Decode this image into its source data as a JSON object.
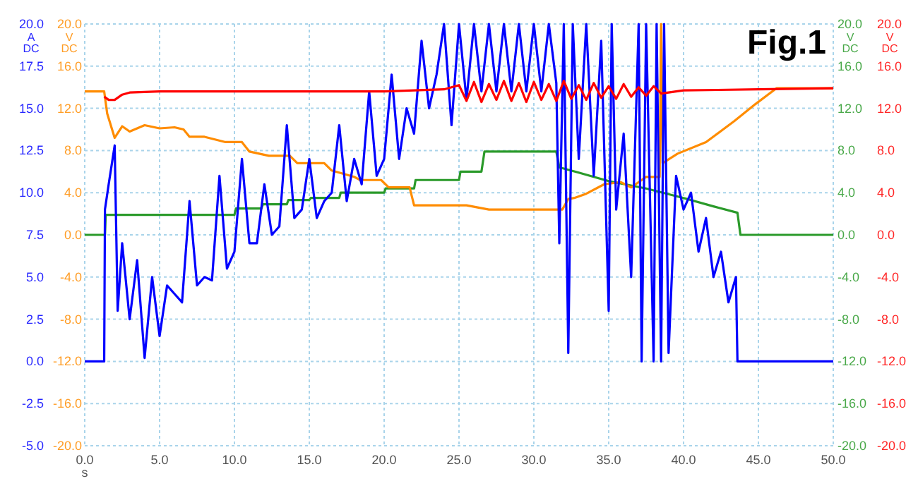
{
  "chart_data": {
    "type": "line",
    "title": "Fig.1",
    "xlabel": "s",
    "ylabel": "A DC",
    "y2label": "V DC",
    "y3label": "V DC",
    "grid": true,
    "marker": "none",
    "line_style": "solid",
    "xlim": [
      0,
      50
    ],
    "xticks": [
      {
        "value": 0,
        "label": "0.0"
      },
      {
        "value": 5,
        "label": "5.0"
      },
      {
        "value": 10,
        "label": "10.0"
      },
      {
        "value": 15,
        "label": "15.0"
      },
      {
        "value": 20,
        "label": "20.0"
      },
      {
        "value": 25,
        "label": "25.0"
      },
      {
        "value": 30,
        "label": "30.0"
      },
      {
        "value": 35,
        "label": "35.0"
      },
      {
        "value": 40,
        "label": "40.0"
      },
      {
        "value": 45,
        "label": "45.0"
      },
      {
        "value": 50,
        "label": "50.0"
      }
    ],
    "ylim": [
      -5,
      20
    ],
    "yticks": [
      {
        "value": -5,
        "label": "-5.0"
      },
      {
        "value": -2.5,
        "label": "-2.5"
      },
      {
        "value": 0,
        "label": "0.0"
      },
      {
        "value": 2.5,
        "label": "2.5"
      },
      {
        "value": 5,
        "label": "5.0"
      },
      {
        "value": 7.5,
        "label": "7.5"
      },
      {
        "value": 10,
        "label": "10.0"
      },
      {
        "value": 12.5,
        "label": "12.5"
      },
      {
        "value": 15,
        "label": "15.0"
      },
      {
        "value": 17.5,
        "label": "17.5"
      },
      {
        "value": 20,
        "label": "20.0"
      }
    ],
    "y2lim": [
      -20,
      20
    ],
    "y2ticks": [
      {
        "value": -20,
        "label": "-20.0"
      },
      {
        "value": -16,
        "label": "-16.0"
      },
      {
        "value": -12,
        "label": "-12.0"
      },
      {
        "value": -8,
        "label": "-8.0"
      },
      {
        "value": -4,
        "label": "-4.0"
      },
      {
        "value": 0,
        "label": "0.0"
      },
      {
        "value": 4,
        "label": "4.0"
      },
      {
        "value": 8,
        "label": "8.0"
      },
      {
        "value": 12,
        "label": "12.0"
      },
      {
        "value": 16,
        "label": "16.0"
      },
      {
        "value": 20,
        "label": "20.0"
      }
    ],
    "y3lim": [
      -20,
      20
    ],
    "y3ticks": [
      {
        "value": -20,
        "label": "-20.0"
      },
      {
        "value": -16,
        "label": "-16.0"
      },
      {
        "value": -12,
        "label": "-12.0"
      },
      {
        "value": -8,
        "label": "-8.0"
      },
      {
        "value": -4,
        "label": "-4.0"
      },
      {
        "value": 0,
        "label": "0.0"
      },
      {
        "value": 4,
        "label": "4.0"
      },
      {
        "value": 8,
        "label": "8.0"
      },
      {
        "value": 12,
        "label": "12.0"
      },
      {
        "value": 16,
        "label": "16.0"
      },
      {
        "value": 20,
        "label": "20.0"
      }
    ],
    "series": [
      {
        "color": "#2a9a2a",
        "axis": "y3",
        "x": [
          0,
          1.35,
          1.4,
          10,
          10.1,
          11.8,
          11.9,
          13.5,
          13.6,
          15,
          15.1,
          17,
          17.1,
          20,
          20.1,
          22,
          22.1,
          25,
          25.1,
          26.5,
          26.7,
          31.5,
          31.7,
          33,
          35,
          37.5,
          40,
          42,
          43.6,
          43.8,
          50
        ],
        "values": [
          0,
          0,
          1.9,
          1.9,
          2.5,
          2.5,
          2.9,
          2.9,
          3.3,
          3.3,
          3.5,
          3.5,
          4,
          4,
          4.4,
          4.4,
          5.2,
          5.2,
          6,
          6,
          7.9,
          7.9,
          6.4,
          5.9,
          5.1,
          4.4,
          3.5,
          2.7,
          2.1,
          0,
          0
        ]
      },
      {
        "color": "#ff8c00",
        "axis": "y2",
        "x": [
          0,
          1.3,
          1.5,
          2,
          2.5,
          3,
          4,
          5,
          6,
          6.6,
          7,
          8,
          9.4,
          10.5,
          11,
          12.3,
          13.7,
          14.2,
          16,
          16.5,
          18,
          18.4,
          19.8,
          20.3,
          21.7,
          22,
          25.5,
          27,
          30,
          31.9,
          32.3,
          32.7,
          33.5,
          34.7,
          35.8,
          36.5,
          37.5,
          38.4,
          38.5,
          38.6,
          39.6,
          41.5,
          43.4,
          44.8,
          46.2,
          50
        ],
        "values": [
          13.6,
          13.6,
          11.5,
          9.2,
          10.3,
          9.8,
          10.4,
          10.1,
          10.2,
          10,
          9.3,
          9.3,
          8.8,
          8.8,
          7.9,
          7.5,
          7.5,
          6.8,
          6.8,
          6.1,
          5.5,
          5.2,
          5.2,
          4.5,
          4.5,
          2.8,
          2.8,
          2.4,
          2.4,
          2.4,
          3.4,
          3.5,
          3.9,
          4.8,
          5,
          4.5,
          5.5,
          5.5,
          20,
          6.8,
          7.7,
          8.8,
          10.8,
          12.4,
          13.9,
          13.9
        ]
      },
      {
        "color": "#0000ff",
        "axis": "y",
        "x": [
          0,
          1.3,
          1.35,
          1.6,
          2,
          2.2,
          2.5,
          3,
          3.5,
          4,
          4.5,
          5,
          5.5,
          6,
          6.5,
          7,
          7.5,
          8,
          8.5,
          9,
          9.5,
          10,
          10.5,
          11,
          11.5,
          12,
          12.5,
          13,
          13.5,
          14,
          14.5,
          15,
          15.5,
          16,
          16.5,
          17,
          17.5,
          18,
          18.5,
          19,
          19.5,
          20,
          20.5,
          21,
          21.5,
          22,
          22.5,
          23,
          23.5,
          24,
          24.5,
          25,
          25.5,
          26,
          26.5,
          27,
          27.5,
          28,
          28.5,
          29,
          29.5,
          30,
          30.5,
          31,
          31.5,
          31.7,
          32,
          32.3,
          32.6,
          33,
          33.5,
          34,
          34.5,
          35,
          35.2,
          35.5,
          36,
          36.5,
          37,
          37.2,
          37.5,
          38,
          38.2,
          38.5,
          38.7,
          39,
          39.5,
          40,
          40.5,
          41,
          41.5,
          42,
          42.5,
          43,
          43.5,
          43.6,
          45,
          50
        ],
        "values": [
          0,
          0,
          9,
          10.5,
          12.8,
          3,
          7,
          2.5,
          6,
          0.2,
          5,
          1.5,
          4.5,
          4,
          3.5,
          9.5,
          4.5,
          5,
          4.8,
          11,
          5.5,
          6.5,
          12,
          7,
          7,
          10.5,
          7.5,
          8,
          14,
          8.5,
          9,
          12,
          8.5,
          9.5,
          10,
          14,
          9.5,
          12,
          10.5,
          16,
          11,
          12,
          17,
          12,
          15,
          13.5,
          19,
          15,
          17,
          20,
          14,
          20,
          15.5,
          20,
          16,
          20,
          16,
          20,
          16,
          20,
          16,
          20,
          16,
          20,
          16.5,
          7,
          20,
          0.5,
          20,
          12,
          20,
          11,
          19,
          3,
          20,
          9,
          13.5,
          5,
          20,
          0,
          20,
          0,
          20,
          0,
          20,
          0.5,
          11,
          9,
          10,
          6.5,
          8.5,
          5,
          6.5,
          3.5,
          5,
          0,
          0,
          0
        ]
      },
      {
        "color": "#ff0000",
        "axis": "y3",
        "x": [
          1.3,
          1.6,
          2,
          2.5,
          3,
          5,
          10,
          15,
          20,
          24,
          25,
          25.5,
          26,
          26.5,
          27,
          27.5,
          28,
          28.5,
          29,
          29.5,
          30,
          30.5,
          31,
          31.5,
          32,
          32.5,
          33,
          33.5,
          34,
          34.5,
          35,
          35.5,
          36,
          36.5,
          37,
          37.5,
          38,
          38.5,
          40,
          45,
          50
        ],
        "values": [
          13.1,
          12.8,
          12.8,
          13.3,
          13.5,
          13.6,
          13.6,
          13.6,
          13.6,
          13.8,
          14.2,
          12.7,
          14.5,
          12.6,
          14.3,
          12.8,
          14.6,
          12.7,
          14.4,
          12.6,
          14.5,
          12.8,
          14.3,
          12.7,
          14.6,
          12.9,
          14.2,
          12.8,
          14.4,
          13,
          14.1,
          12.9,
          14.3,
          13.1,
          14,
          13.2,
          14.1,
          13.4,
          13.7,
          13.8,
          13.9
        ]
      }
    ]
  }
}
